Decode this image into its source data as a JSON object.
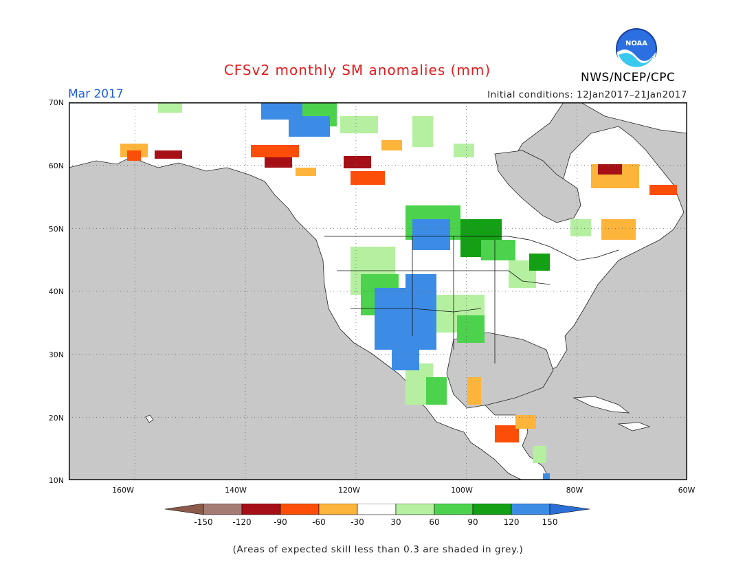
{
  "title": "CFSv2 monthly SM anomalies (mm)",
  "month_label": "Mar 2017",
  "initial_conditions": "Initial conditions: 12Jan2017–21Jan2017",
  "agency": "NWS/NCEP/CPC",
  "logo_text": "NOAA",
  "note": "(Areas of expected skill less than 0.3 are shaded in grey.)",
  "map": {
    "lon_range": [
      -172,
      -60
    ],
    "lat_range": [
      10,
      70
    ],
    "lon_ticks": [
      "160W",
      "140W",
      "120W",
      "100W",
      "80W",
      "60W"
    ],
    "lat_ticks": [
      "70N",
      "60N",
      "50N",
      "40N",
      "30N",
      "20N",
      "10N"
    ],
    "background_color": "#c8c8c8",
    "land_color": "#ffffff"
  },
  "legend": {
    "ticks": [
      "-150",
      "-120",
      "-90",
      "-60",
      "-30",
      "30",
      "60",
      "90",
      "120",
      "150"
    ],
    "colors": [
      "#8b5a4a",
      "#a57c74",
      "#a50f15",
      "#fc4e08",
      "#fdb43a",
      "#ffffff",
      "#b4f0a0",
      "#4cd24c",
      "#14a014",
      "#3c8ce6",
      "#2a6fd6"
    ]
  }
}
